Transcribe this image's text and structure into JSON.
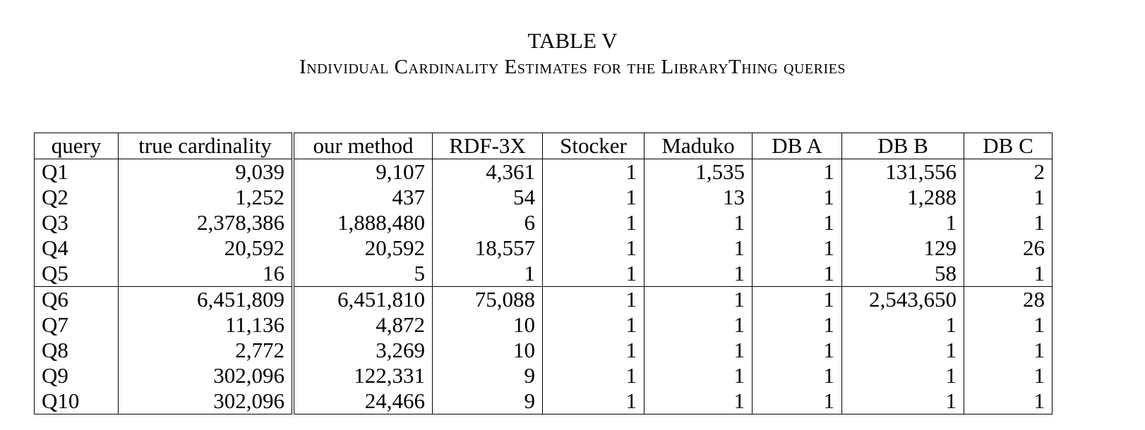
{
  "caption": {
    "title": "TABLE V",
    "subtitle": "Individual Cardinality Estimates for the LibraryThing queries"
  },
  "table": {
    "headers": [
      "query",
      "true cardinality",
      "our method",
      "RDF-3X",
      "Stocker",
      "Maduko",
      "DB A",
      "DB B",
      "DB C"
    ],
    "rows": [
      [
        "Q1",
        "9,039",
        "9,107",
        "4,361",
        "1",
        "1,535",
        "1",
        "131,556",
        "2"
      ],
      [
        "Q2",
        "1,252",
        "437",
        "54",
        "1",
        "13",
        "1",
        "1,288",
        "1"
      ],
      [
        "Q3",
        "2,378,386",
        "1,888,480",
        "6",
        "1",
        "1",
        "1",
        "1",
        "1"
      ],
      [
        "Q4",
        "20,592",
        "20,592",
        "18,557",
        "1",
        "1",
        "1",
        "129",
        "26"
      ],
      [
        "Q5",
        "16",
        "5",
        "1",
        "1",
        "1",
        "1",
        "58",
        "1"
      ],
      [
        "Q6",
        "6,451,809",
        "6,451,810",
        "75,088",
        "1",
        "1",
        "1",
        "2,543,650",
        "28"
      ],
      [
        "Q7",
        "11,136",
        "4,872",
        "10",
        "1",
        "1",
        "1",
        "1",
        "1"
      ],
      [
        "Q8",
        "2,772",
        "3,269",
        "10",
        "1",
        "1",
        "1",
        "1",
        "1"
      ],
      [
        "Q9",
        "302,096",
        "122,331",
        "9",
        "1",
        "1",
        "1",
        "1",
        "1"
      ],
      [
        "Q10",
        "302,096",
        "24,466",
        "9",
        "1",
        "1",
        "1",
        "1",
        "1"
      ]
    ]
  }
}
